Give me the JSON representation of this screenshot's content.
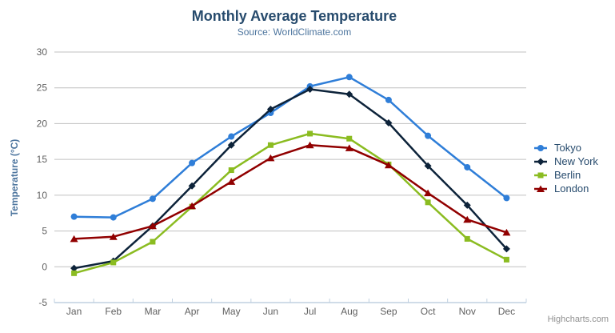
{
  "credits": {
    "text": "Highcharts.com"
  },
  "export_menu": {
    "icon": "hamburger"
  },
  "colors": {
    "title": "#274b6d",
    "subtitle": "#4d759e",
    "axis_label": "#606060",
    "axis_title": "#4d759e",
    "legend_text": "#274b6d",
    "gridline": "#c0c0c0",
    "axis_line": "#c0d0e0",
    "credits": "#909090",
    "burger": "#666666"
  },
  "chart_data": {
    "type": "line",
    "title": "Monthly Average Temperature",
    "subtitle": "Source: WorldClimate.com",
    "xlabel": "",
    "ylabel": "Temperature (°C)",
    "ylim": [
      -5,
      30
    ],
    "ytick_step": 5,
    "grid": true,
    "legend_position": "right",
    "categories": [
      "Jan",
      "Feb",
      "Mar",
      "Apr",
      "May",
      "Jun",
      "Jul",
      "Aug",
      "Sep",
      "Oct",
      "Nov",
      "Dec"
    ],
    "series": [
      {
        "name": "Tokyo",
        "color": "#2f7ed8",
        "marker": "circle",
        "values": [
          7.0,
          6.9,
          9.5,
          14.5,
          18.2,
          21.5,
          25.2,
          26.5,
          23.3,
          18.3,
          13.9,
          9.6
        ]
      },
      {
        "name": "New York",
        "color": "#0d233a",
        "marker": "diamond",
        "values": [
          -0.2,
          0.8,
          5.7,
          11.3,
          17.0,
          22.0,
          24.8,
          24.1,
          20.1,
          14.1,
          8.6,
          2.5
        ]
      },
      {
        "name": "Berlin",
        "color": "#8bbc21",
        "marker": "square",
        "values": [
          -0.9,
          0.6,
          3.5,
          8.4,
          13.5,
          17.0,
          18.6,
          17.9,
          14.3,
          9.0,
          3.9,
          1.0
        ]
      },
      {
        "name": "London",
        "color": "#910000",
        "marker": "triangle",
        "values": [
          3.9,
          4.2,
          5.7,
          8.5,
          11.9,
          15.2,
          17.0,
          16.6,
          14.2,
          10.3,
          6.6,
          4.8
        ]
      }
    ]
  }
}
